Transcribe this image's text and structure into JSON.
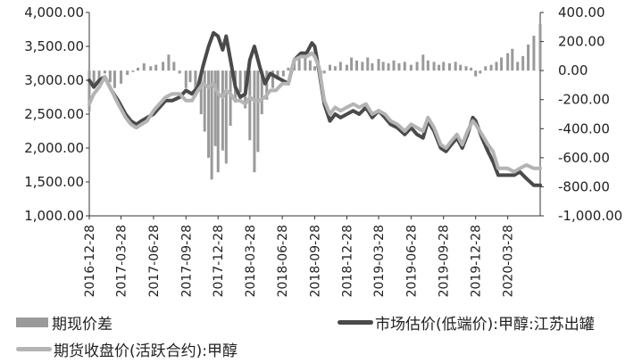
{
  "chart_data": {
    "type": "line",
    "left_axis": {
      "min": 1000,
      "max": 4000,
      "ticks": [
        "1,000.00",
        "1,500.00",
        "2,000.00",
        "2,500.00",
        "3,000.00",
        "3,500.00",
        "4,000.00"
      ]
    },
    "right_axis": {
      "min": -1000,
      "max": 400,
      "ticks": [
        "-1,000.00",
        "-800.00",
        "-600.00",
        "-400.00",
        "-200.00",
        "0.00",
        "200.00",
        "400.00"
      ]
    },
    "x_start": "2016-12-28",
    "x_end": "2020-06-28",
    "x_ticks": [
      "2016-12-28",
      "2017-03-28",
      "2017-06-28",
      "2017-09-28",
      "2017-12-28",
      "2018-03-28",
      "2018-06-28",
      "2018-09-28",
      "2018-12-28",
      "2019-03-28",
      "2019-06-28",
      "2019-09-28",
      "2019-12-28",
      "2020-03-28"
    ],
    "series": [
      {
        "name": "期现价差",
        "type": "bar",
        "axis": "right",
        "color": "#9a9a9a",
        "points": [
          [
            "2016-12-28",
            -280
          ],
          [
            "2017-01-10",
            -120
          ],
          [
            "2017-01-25",
            -60
          ],
          [
            "2017-02-10",
            -20
          ],
          [
            "2017-02-25",
            -80
          ],
          [
            "2017-03-10",
            -120
          ],
          [
            "2017-03-28",
            -90
          ],
          [
            "2017-04-15",
            -30
          ],
          [
            "2017-05-01",
            -10
          ],
          [
            "2017-05-15",
            20
          ],
          [
            "2017-06-01",
            50
          ],
          [
            "2017-06-20",
            30
          ],
          [
            "2017-07-05",
            40
          ],
          [
            "2017-07-25",
            60
          ],
          [
            "2017-08-10",
            110
          ],
          [
            "2017-08-25",
            60
          ],
          [
            "2017-09-10",
            -20
          ],
          [
            "2017-09-28",
            -120
          ],
          [
            "2017-10-10",
            -80
          ],
          [
            "2017-10-25",
            -180
          ],
          [
            "2017-11-10",
            -300
          ],
          [
            "2017-11-20",
            -420
          ],
          [
            "2017-12-01",
            -600
          ],
          [
            "2017-12-10",
            -750
          ],
          [
            "2017-12-20",
            -520
          ],
          [
            "2017-12-28",
            -700
          ],
          [
            "2018-01-10",
            -550
          ],
          [
            "2018-01-20",
            -640
          ],
          [
            "2018-02-01",
            -380
          ],
          [
            "2018-02-15",
            -220
          ],
          [
            "2018-03-01",
            -150
          ],
          [
            "2018-03-15",
            -260
          ],
          [
            "2018-03-28",
            -480
          ],
          [
            "2018-04-10",
            -700
          ],
          [
            "2018-04-20",
            -560
          ],
          [
            "2018-05-01",
            -300
          ],
          [
            "2018-05-15",
            -200
          ],
          [
            "2018-06-01",
            -120
          ],
          [
            "2018-06-15",
            -60
          ],
          [
            "2018-07-01",
            -40
          ],
          [
            "2018-07-15",
            20
          ],
          [
            "2018-08-01",
            60
          ],
          [
            "2018-08-15",
            80
          ],
          [
            "2018-09-01",
            100
          ],
          [
            "2018-09-15",
            70
          ],
          [
            "2018-09-28",
            30
          ],
          [
            "2018-10-15",
            -80
          ],
          [
            "2018-10-25",
            -20
          ],
          [
            "2018-11-10",
            40
          ],
          [
            "2018-11-25",
            30
          ],
          [
            "2018-12-10",
            60
          ],
          [
            "2018-12-28",
            40
          ],
          [
            "2019-01-10",
            90
          ],
          [
            "2019-01-25",
            70
          ],
          [
            "2019-02-10",
            60
          ],
          [
            "2019-02-25",
            90
          ],
          [
            "2019-03-10",
            50
          ],
          [
            "2019-03-28",
            80
          ],
          [
            "2019-04-10",
            60
          ],
          [
            "2019-04-25",
            50
          ],
          [
            "2019-05-10",
            70
          ],
          [
            "2019-05-25",
            50
          ],
          [
            "2019-06-10",
            60
          ],
          [
            "2019-06-28",
            40
          ],
          [
            "2019-07-15",
            60
          ],
          [
            "2019-08-01",
            110
          ],
          [
            "2019-08-15",
            70
          ],
          [
            "2019-09-01",
            60
          ],
          [
            "2019-09-15",
            40
          ],
          [
            "2019-09-28",
            60
          ],
          [
            "2019-10-15",
            50
          ],
          [
            "2019-11-01",
            60
          ],
          [
            "2019-11-15",
            40
          ],
          [
            "2019-12-01",
            30
          ],
          [
            "2019-12-15",
            20
          ],
          [
            "2019-12-28",
            -40
          ],
          [
            "2020-01-10",
            -20
          ],
          [
            "2020-01-25",
            30
          ],
          [
            "2020-02-10",
            40
          ],
          [
            "2020-02-25",
            60
          ],
          [
            "2020-03-10",
            90
          ],
          [
            "2020-03-28",
            120
          ],
          [
            "2020-04-10",
            150
          ],
          [
            "2020-04-25",
            60
          ],
          [
            "2020-05-10",
            100
          ],
          [
            "2020-05-25",
            180
          ],
          [
            "2020-06-10",
            240
          ],
          [
            "2020-06-28",
            320
          ]
        ]
      },
      {
        "name": "市场估价(低端价):甲醇:江苏出罐",
        "type": "line",
        "axis": "left",
        "color": "#4a4a4a",
        "points": [
          [
            "2016-12-28",
            3000
          ],
          [
            "2017-01-10",
            2900
          ],
          [
            "2017-01-25",
            3000
          ],
          [
            "2017-02-10",
            3050
          ],
          [
            "2017-03-01",
            2850
          ],
          [
            "2017-03-20",
            2700
          ],
          [
            "2017-04-10",
            2500
          ],
          [
            "2017-04-25",
            2400
          ],
          [
            "2017-05-10",
            2350
          ],
          [
            "2017-05-25",
            2400
          ],
          [
            "2017-06-10",
            2450
          ],
          [
            "2017-06-28",
            2500
          ],
          [
            "2017-07-15",
            2600
          ],
          [
            "2017-08-01",
            2700
          ],
          [
            "2017-08-20",
            2700
          ],
          [
            "2017-09-10",
            2750
          ],
          [
            "2017-09-28",
            2850
          ],
          [
            "2017-10-15",
            2800
          ],
          [
            "2017-11-01",
            2900
          ],
          [
            "2017-11-15",
            3200
          ],
          [
            "2017-12-01",
            3500
          ],
          [
            "2017-12-15",
            3700
          ],
          [
            "2017-12-28",
            3650
          ],
          [
            "2018-01-10",
            3450
          ],
          [
            "2018-01-20",
            3650
          ],
          [
            "2018-02-01",
            3300
          ],
          [
            "2018-02-15",
            2900
          ],
          [
            "2018-03-01",
            2750
          ],
          [
            "2018-03-15",
            2800
          ],
          [
            "2018-03-28",
            3300
          ],
          [
            "2018-04-10",
            3500
          ],
          [
            "2018-04-25",
            3200
          ],
          [
            "2018-05-10",
            2950
          ],
          [
            "2018-05-25",
            3100
          ],
          [
            "2018-06-10",
            3050
          ],
          [
            "2018-06-28",
            3000
          ],
          [
            "2018-07-15",
            2950
          ],
          [
            "2018-08-01",
            3300
          ],
          [
            "2018-08-20",
            3400
          ],
          [
            "2018-09-05",
            3400
          ],
          [
            "2018-09-20",
            3550
          ],
          [
            "2018-09-28",
            3500
          ],
          [
            "2018-10-10",
            3150
          ],
          [
            "2018-10-25",
            2650
          ],
          [
            "2018-11-10",
            2400
          ],
          [
            "2018-11-25",
            2500
          ],
          [
            "2018-12-10",
            2450
          ],
          [
            "2018-12-28",
            2500
          ],
          [
            "2019-01-15",
            2550
          ],
          [
            "2019-02-01",
            2500
          ],
          [
            "2019-02-20",
            2600
          ],
          [
            "2019-03-10",
            2450
          ],
          [
            "2019-03-28",
            2550
          ],
          [
            "2019-04-15",
            2450
          ],
          [
            "2019-05-01",
            2350
          ],
          [
            "2019-05-20",
            2300
          ],
          [
            "2019-06-10",
            2200
          ],
          [
            "2019-06-28",
            2300
          ],
          [
            "2019-07-15",
            2200
          ],
          [
            "2019-08-01",
            2150
          ],
          [
            "2019-08-15",
            2400
          ],
          [
            "2019-09-01",
            2250
          ],
          [
            "2019-09-20",
            2000
          ],
          [
            "2019-10-05",
            1950
          ],
          [
            "2019-10-20",
            2050
          ],
          [
            "2019-11-05",
            2150
          ],
          [
            "2019-11-20",
            2000
          ],
          [
            "2019-12-05",
            2200
          ],
          [
            "2019-12-20",
            2450
          ],
          [
            "2019-12-28",
            2400
          ],
          [
            "2020-01-15",
            2150
          ],
          [
            "2020-02-01",
            1950
          ],
          [
            "2020-02-15",
            1800
          ],
          [
            "2020-03-01",
            1600
          ],
          [
            "2020-03-28",
            1600
          ],
          [
            "2020-04-15",
            1600
          ],
          [
            "2020-05-01",
            1650
          ],
          [
            "2020-05-20",
            1550
          ],
          [
            "2020-06-10",
            1450
          ],
          [
            "2020-06-28",
            1450
          ]
        ]
      },
      {
        "name": "期货收盘价(活跃合约):甲醇",
        "type": "line",
        "axis": "left",
        "color": "#b4b4b4",
        "points": [
          [
            "2016-12-28",
            2650
          ],
          [
            "2017-01-10",
            2800
          ],
          [
            "2017-01-25",
            2900
          ],
          [
            "2017-02-10",
            3050
          ],
          [
            "2017-03-01",
            2850
          ],
          [
            "2017-03-20",
            2650
          ],
          [
            "2017-04-10",
            2450
          ],
          [
            "2017-04-25",
            2350
          ],
          [
            "2017-05-10",
            2300
          ],
          [
            "2017-05-25",
            2350
          ],
          [
            "2017-06-10",
            2400
          ],
          [
            "2017-06-28",
            2550
          ],
          [
            "2017-07-15",
            2650
          ],
          [
            "2017-08-01",
            2750
          ],
          [
            "2017-08-20",
            2800
          ],
          [
            "2017-09-10",
            2800
          ],
          [
            "2017-09-28",
            2700
          ],
          [
            "2017-10-15",
            2700
          ],
          [
            "2017-11-01",
            2850
          ],
          [
            "2017-11-15",
            2950
          ],
          [
            "2017-12-01",
            2900
          ],
          [
            "2017-12-15",
            2950
          ],
          [
            "2017-12-28",
            2800
          ],
          [
            "2018-01-10",
            2750
          ],
          [
            "2018-01-20",
            2850
          ],
          [
            "2018-02-01",
            2800
          ],
          [
            "2018-02-15",
            2700
          ],
          [
            "2018-03-01",
            2700
          ],
          [
            "2018-03-15",
            2650
          ],
          [
            "2018-03-28",
            2750
          ],
          [
            "2018-04-10",
            2700
          ],
          [
            "2018-04-25",
            2700
          ],
          [
            "2018-05-10",
            2750
          ],
          [
            "2018-05-25",
            2850
          ],
          [
            "2018-06-10",
            2850
          ],
          [
            "2018-06-28",
            2950
          ],
          [
            "2018-07-15",
            2950
          ],
          [
            "2018-08-01",
            3300
          ],
          [
            "2018-08-20",
            3350
          ],
          [
            "2018-09-05",
            3350
          ],
          [
            "2018-09-20",
            3400
          ],
          [
            "2018-09-28",
            3350
          ],
          [
            "2018-10-10",
            3200
          ],
          [
            "2018-10-25",
            2700
          ],
          [
            "2018-11-10",
            2500
          ],
          [
            "2018-11-25",
            2600
          ],
          [
            "2018-12-10",
            2550
          ],
          [
            "2018-12-28",
            2600
          ],
          [
            "2019-01-15",
            2650
          ],
          [
            "2019-02-01",
            2600
          ],
          [
            "2019-02-20",
            2650
          ],
          [
            "2019-03-10",
            2500
          ],
          [
            "2019-03-28",
            2550
          ],
          [
            "2019-04-15",
            2500
          ],
          [
            "2019-05-01",
            2400
          ],
          [
            "2019-05-20",
            2350
          ],
          [
            "2019-06-10",
            2250
          ],
          [
            "2019-06-28",
            2350
          ],
          [
            "2019-07-15",
            2300
          ],
          [
            "2019-08-01",
            2250
          ],
          [
            "2019-08-15",
            2450
          ],
          [
            "2019-09-01",
            2300
          ],
          [
            "2019-09-20",
            2050
          ],
          [
            "2019-10-05",
            2000
          ],
          [
            "2019-10-20",
            2100
          ],
          [
            "2019-11-05",
            2200
          ],
          [
            "2019-11-20",
            2050
          ],
          [
            "2019-12-05",
            2250
          ],
          [
            "2019-12-20",
            2400
          ],
          [
            "2019-12-28",
            2350
          ],
          [
            "2020-01-15",
            2200
          ],
          [
            "2020-02-01",
            2050
          ],
          [
            "2020-02-15",
            1950
          ],
          [
            "2020-03-01",
            1700
          ],
          [
            "2020-03-28",
            1700
          ],
          [
            "2020-04-15",
            1650
          ],
          [
            "2020-05-01",
            1700
          ],
          [
            "2020-05-20",
            1750
          ],
          [
            "2020-06-10",
            1700
          ],
          [
            "2020-06-28",
            1700
          ]
        ]
      }
    ]
  }
}
